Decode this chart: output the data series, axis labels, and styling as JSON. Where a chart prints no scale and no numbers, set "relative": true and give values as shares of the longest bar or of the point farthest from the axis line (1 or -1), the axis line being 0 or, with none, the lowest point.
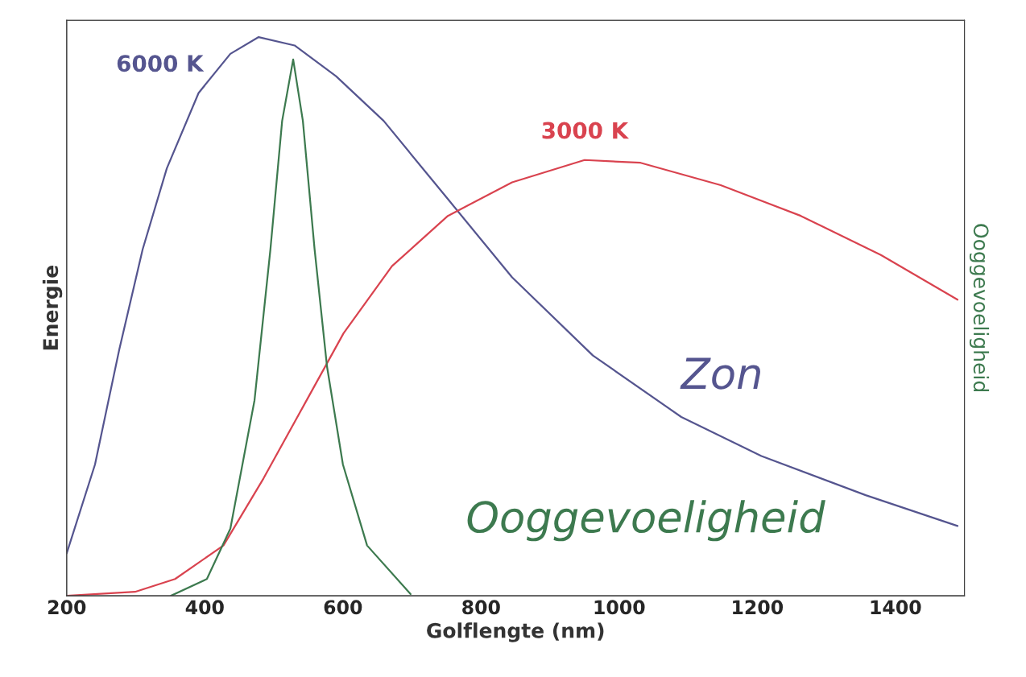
{
  "chart_data": {
    "type": "line",
    "relative": true,
    "xlabel": "Golflengte (nm)",
    "ylabel": "Energie",
    "y2label": "Ooggevoeligheid",
    "xlim": [
      200,
      1500
    ],
    "xticks": [
      200,
      400,
      600,
      800,
      1000,
      1200,
      1400
    ],
    "grid": false,
    "legend": false,
    "marker": "none",
    "line_style": "solid",
    "series": [
      {
        "name": "6000 K",
        "color": "#55558f",
        "x": [
          200,
          241,
          276,
          310,
          345,
          391,
          437,
          478,
          530,
          590,
          659,
          752,
          845,
          962,
          1090,
          1206,
          1357,
          1490
        ],
        "values": [
          0.076,
          0.235,
          0.44,
          0.62,
          0.765,
          0.9,
          0.97,
          1.0,
          0.985,
          0.93,
          0.85,
          0.71,
          0.57,
          0.43,
          0.32,
          0.25,
          0.18,
          0.125
        ]
      },
      {
        "name": "3000 K",
        "color": "#d9434f",
        "x": [
          200,
          299,
          357,
          427,
          485,
          543,
          601,
          671,
          752,
          845,
          950,
          1031,
          1147,
          1263,
          1379,
          1490
        ],
        "values": [
          0,
          0.007,
          0.03,
          0.09,
          0.21,
          0.34,
          0.47,
          0.59,
          0.68,
          0.74,
          0.78,
          0.775,
          0.735,
          0.68,
          0.61,
          0.53
        ]
      },
      {
        "name": "Ooggevoeligheid",
        "color": "#3d7a4f",
        "x": [
          351,
          403,
          437,
          472,
          495,
          512,
          528,
          542,
          559,
          577,
          600,
          635,
          698
        ],
        "values": [
          0,
          0.03,
          0.12,
          0.35,
          0.62,
          0.85,
          0.96,
          0.85,
          0.62,
          0.41,
          0.235,
          0.09,
          0.003
        ]
      }
    ],
    "annotations": [
      "Zon"
    ]
  }
}
